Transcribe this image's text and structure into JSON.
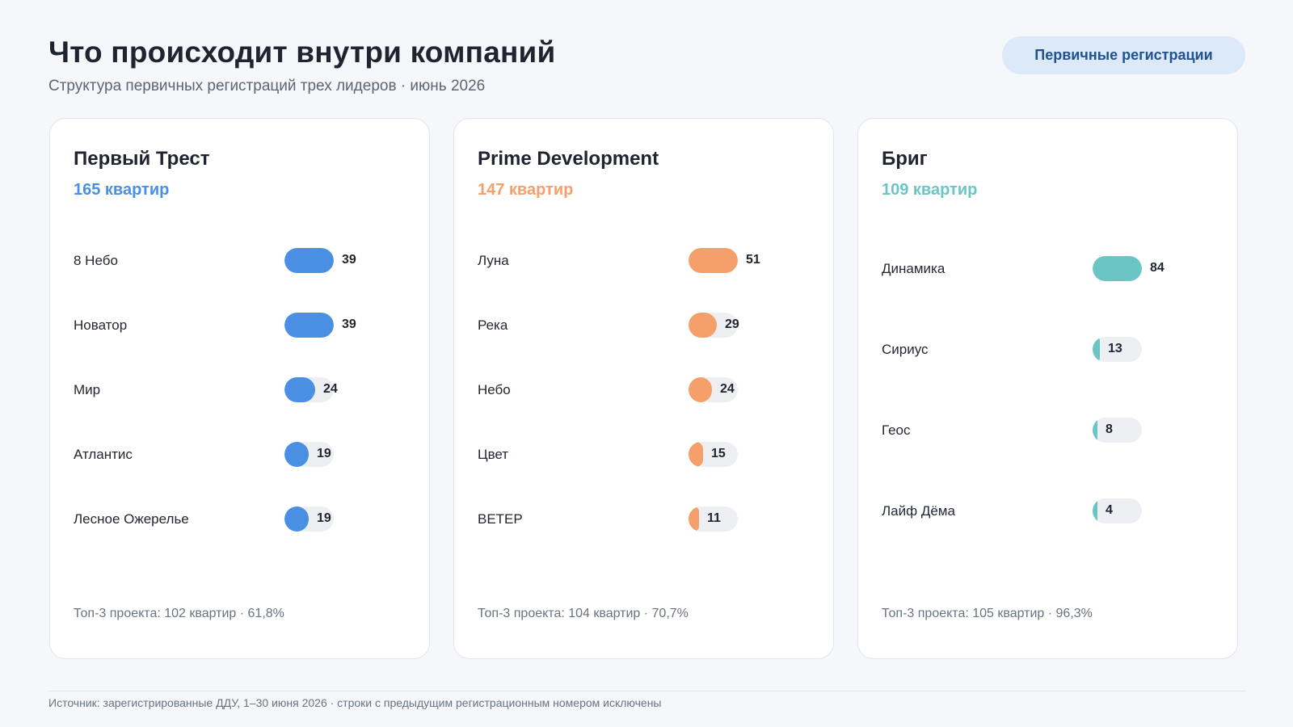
{
  "header": {
    "title": "Что происходит внутри компаний",
    "subtitle": "Структура первичных регистраций трех лидеров · июнь 2026",
    "badge": "Первичные регистрации"
  },
  "colors": {
    "accent_blue": "#4a90e2",
    "accent_orange": "#f5a06b",
    "accent_teal": "#6cc5c5",
    "badge_bg": "#dbe9f8",
    "badge_text": "#22518f"
  },
  "chart_data": [
    {
      "type": "bar",
      "title": "Первый Трест",
      "total_label": "165 квартир",
      "color": "#4a90e2",
      "categories": [
        "8 Небо",
        "Новатор",
        "Мир",
        "Атлантис",
        "Лесное Ожерелье"
      ],
      "values": [
        39,
        39,
        24,
        19,
        19
      ],
      "footer": "Топ-3 проекта: 102 квартир · 61,8%"
    },
    {
      "type": "bar",
      "title": "Prime Development",
      "total_label": "147 квартир",
      "color": "#f5a06b",
      "categories": [
        "Луна",
        "Река",
        "Небо",
        "Цвет",
        "ВЕТЕР"
      ],
      "values": [
        51,
        29,
        24,
        15,
        11
      ],
      "footer": "Топ-3 проекта: 104 квартир · 70,7%"
    },
    {
      "type": "bar",
      "title": "Бриг",
      "total_label": "109 квартир",
      "color": "#6cc5c5",
      "categories": [
        "Динамика",
        "Сириус",
        "Геос",
        "Лайф Дёма"
      ],
      "values": [
        84,
        13,
        8,
        4
      ],
      "footer": "Топ-3 проекта: 105 квартир · 96,3%"
    }
  ],
  "footer": {
    "source": "Источник: зарегистрированные ДДУ, 1–30 июня 2026 · строки с предыдущим регистрационным номером исключены"
  }
}
